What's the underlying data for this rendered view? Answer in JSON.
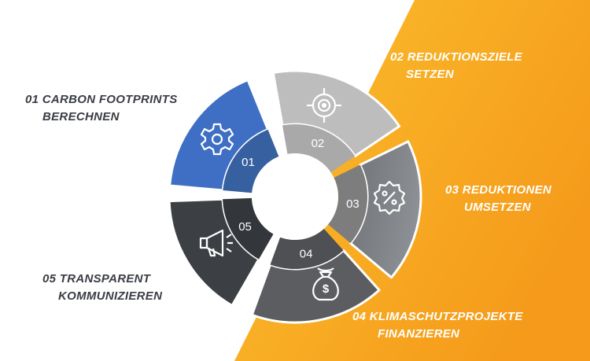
{
  "colors": {
    "background": "#ffffff",
    "accent_orange": "#f7a21b",
    "accent_yellow": "#fbc02d",
    "step1": "#3f6fc4",
    "step2": "#bdbdbd",
    "step3": "#8a8a8a",
    "step4": "#5b5d60",
    "step5": "#3c3f44"
  },
  "steps": [
    {
      "number": "01",
      "label_line1": "01 CARBON FOOTPRINTS",
      "label_line2": "BERECHNEN",
      "icon": "gear-icon"
    },
    {
      "number": "02",
      "label_line1": "02 REDUKTIONSZIELE",
      "label_line2": "SETZEN",
      "icon": "target-icon"
    },
    {
      "number": "03",
      "label_line1": "03 REDUKTIONEN",
      "label_line2": "UMSETZEN",
      "icon": "percent-badge-icon"
    },
    {
      "number": "04",
      "label_line1": "04 KLIMASCHUTZPROJEKTE",
      "label_line2": "FINANZIEREN",
      "icon": "money-bag-icon"
    },
    {
      "number": "05",
      "label_line1": "05 TRANSPARENT",
      "label_line2": "KOMMUNIZIEREN",
      "icon": "megaphone-icon"
    }
  ]
}
